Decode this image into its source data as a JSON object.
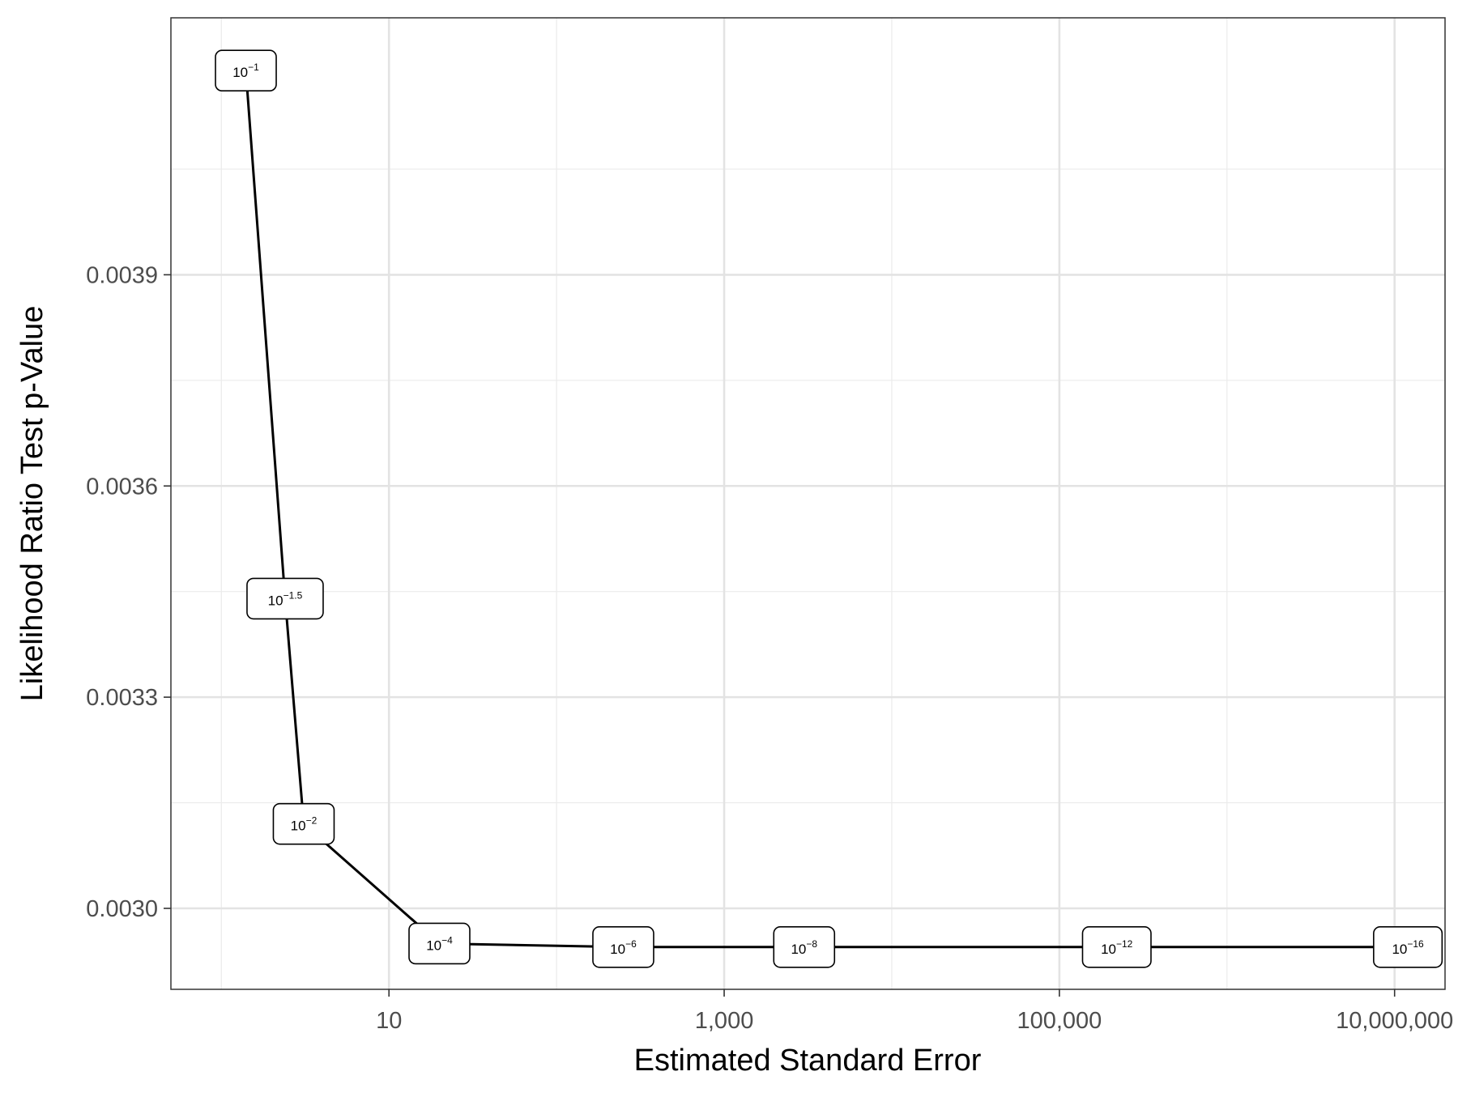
{
  "chart_data": {
    "type": "line",
    "xlabel": "Estimated Standard Error",
    "ylabel": "Likelihood Ratio Test p-Value",
    "x_scale": "log10",
    "xlim": [
      0.5,
      20000000
    ],
    "ylim": [
      0.002885,
      0.004265
    ],
    "x_ticks": [
      {
        "value": 10,
        "label": "10"
      },
      {
        "value": 1000,
        "label": "1,000"
      },
      {
        "value": 100000,
        "label": "100,000"
      },
      {
        "value": 10000000,
        "label": "10,000,000"
      }
    ],
    "x_minor_ticks": [
      1,
      100,
      10000,
      1000000
    ],
    "y_ticks": [
      {
        "value": 0.003,
        "label": "0.0030"
      },
      {
        "value": 0.0033,
        "label": "0.0033"
      },
      {
        "value": 0.0036,
        "label": "0.0036"
      },
      {
        "value": 0.0039,
        "label": "0.0039"
      }
    ],
    "y_minor_ticks": [
      0.00315,
      0.00345,
      0.00375,
      0.00405
    ],
    "grid": true,
    "line_color": "#000000",
    "series": [
      {
        "points": [
          {
            "x": 1.4,
            "y": 0.00419,
            "label_base": "10",
            "label_exp": "−1"
          },
          {
            "x": 2.4,
            "y": 0.00344,
            "label_base": "10",
            "label_exp": "−1.5"
          },
          {
            "x": 3.1,
            "y": 0.00312,
            "label_base": "10",
            "label_exp": "−2"
          },
          {
            "x": 20,
            "y": 0.00295,
            "label_base": "10",
            "label_exp": "−4"
          },
          {
            "x": 250,
            "y": 0.002945,
            "label_base": "10",
            "label_exp": "−6"
          },
          {
            "x": 3000,
            "y": 0.002945,
            "label_base": "10",
            "label_exp": "−8"
          },
          {
            "x": 220000,
            "y": 0.002945,
            "label_base": "10",
            "label_exp": "−12"
          },
          {
            "x": 12000000,
            "y": 0.002945,
            "label_base": "10",
            "label_exp": "−16"
          }
        ]
      }
    ]
  }
}
